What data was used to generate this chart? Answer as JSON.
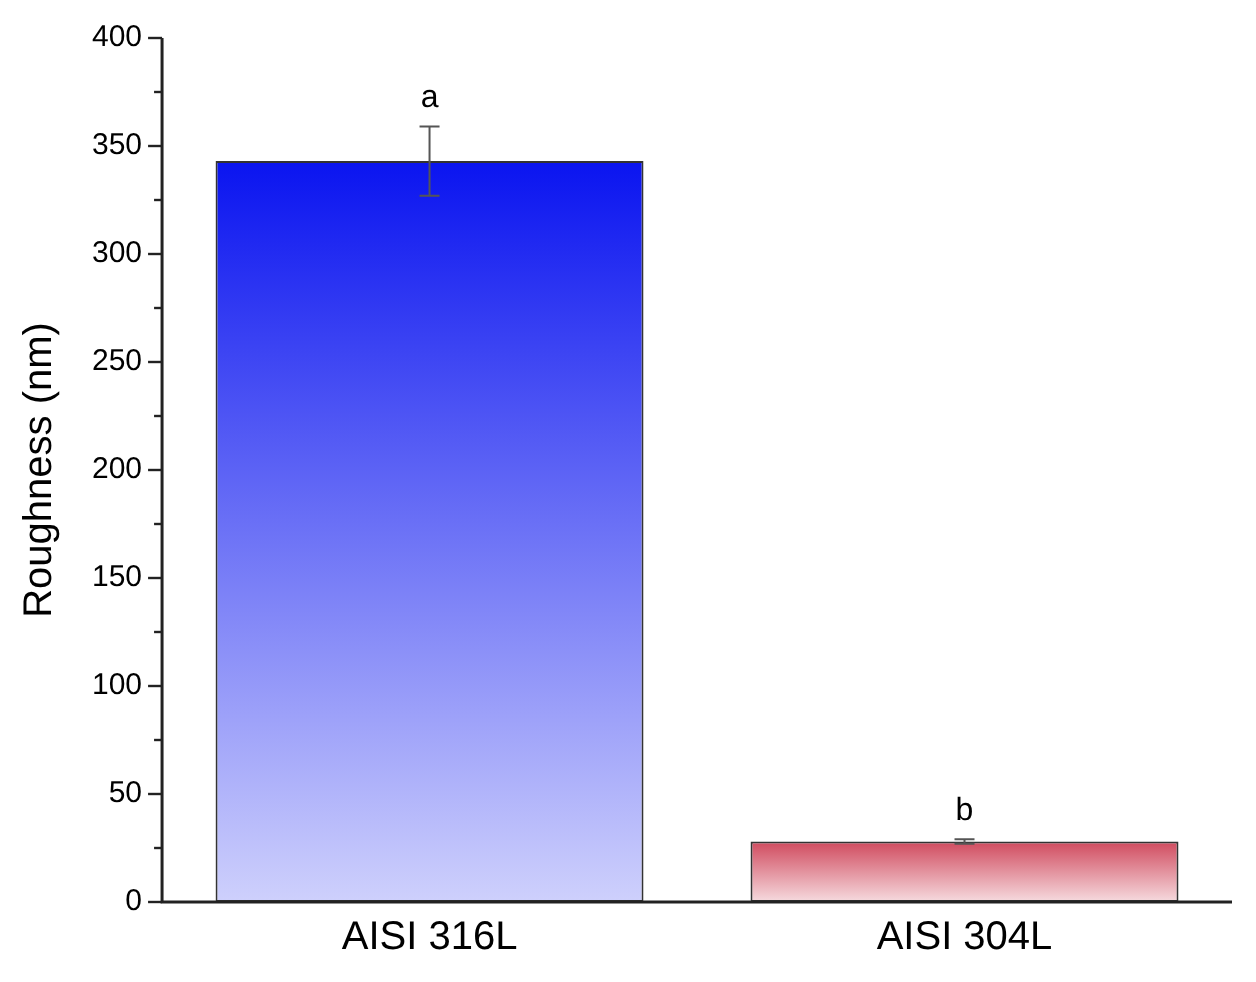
{
  "chart_data": {
    "type": "bar",
    "ylabel": "Roughness (nm)",
    "categories": [
      "AISI 316L",
      "AISI 304L"
    ],
    "values": [
      343,
      28
    ],
    "errors": [
      16,
      1
    ],
    "colors": [
      "#0a14f0",
      "#d04a5e"
    ],
    "ylim": [
      0,
      400
    ],
    "yticks": [
      0,
      50,
      100,
      150,
      200,
      250,
      300,
      350,
      400
    ],
    "grid": false,
    "legend": false,
    "annotations": [
      {
        "text": "a",
        "x": "AISI 316L",
        "y": 359
      },
      {
        "text": "b",
        "x": "AISI 304L",
        "y": 29
      }
    ]
  }
}
